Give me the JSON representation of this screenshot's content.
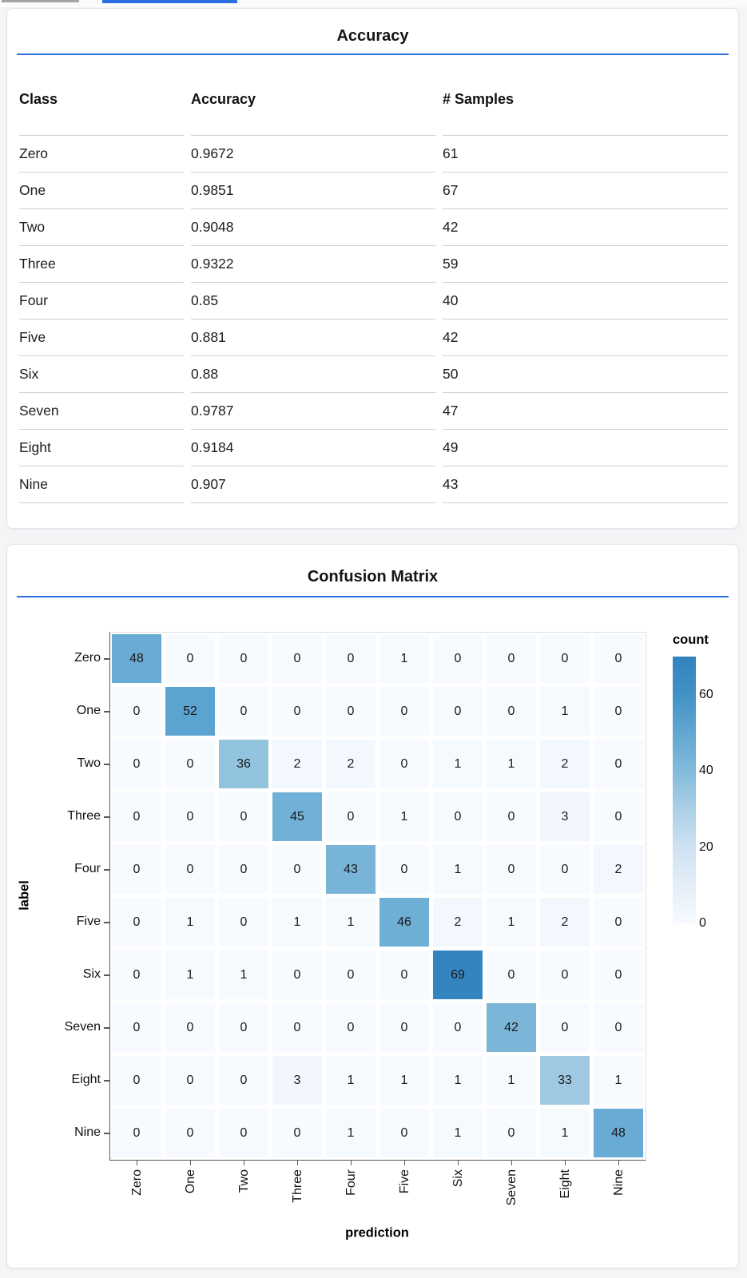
{
  "accent": "#2b6fe0",
  "top_bars": {
    "gray_color": "#a5a5a5",
    "blue_color": "#2b6fe0"
  },
  "accuracy_card": {
    "title": "Accuracy"
  },
  "confusion_card": {
    "title": "Confusion Matrix"
  },
  "chart_data": [
    {
      "type": "table",
      "title": "Accuracy",
      "columns": [
        "Class",
        "Accuracy",
        "# Samples"
      ],
      "rows": [
        [
          "Zero",
          "0.9672",
          "61"
        ],
        [
          "One",
          "0.9851",
          "67"
        ],
        [
          "Two",
          "0.9048",
          "42"
        ],
        [
          "Three",
          "0.9322",
          "59"
        ],
        [
          "Four",
          "0.85",
          "40"
        ],
        [
          "Five",
          "0.881",
          "42"
        ],
        [
          "Six",
          "0.88",
          "50"
        ],
        [
          "Seven",
          "0.9787",
          "47"
        ],
        [
          "Eight",
          "0.9184",
          "49"
        ],
        [
          "Nine",
          "0.907",
          "43"
        ]
      ]
    },
    {
      "type": "heatmap",
      "title": "Confusion Matrix",
      "xlabel": "prediction",
      "ylabel": "label",
      "legend_title": "count",
      "x_categories": [
        "Zero",
        "One",
        "Two",
        "Three",
        "Four",
        "Five",
        "Six",
        "Seven",
        "Eight",
        "Nine"
      ],
      "y_categories": [
        "Zero",
        "One",
        "Two",
        "Three",
        "Four",
        "Five",
        "Six",
        "Seven",
        "Eight",
        "Nine"
      ],
      "values": [
        [
          48,
          0,
          0,
          0,
          0,
          1,
          0,
          0,
          0,
          0
        ],
        [
          0,
          52,
          0,
          0,
          0,
          0,
          0,
          0,
          1,
          0
        ],
        [
          0,
          0,
          36,
          2,
          2,
          0,
          1,
          1,
          2,
          0
        ],
        [
          0,
          0,
          0,
          45,
          0,
          1,
          0,
          0,
          3,
          0
        ],
        [
          0,
          0,
          0,
          0,
          43,
          0,
          1,
          0,
          0,
          2
        ],
        [
          0,
          1,
          0,
          1,
          1,
          46,
          2,
          1,
          2,
          0
        ],
        [
          0,
          1,
          1,
          0,
          0,
          0,
          69,
          0,
          0,
          0
        ],
        [
          0,
          0,
          0,
          0,
          0,
          0,
          0,
          42,
          0,
          0
        ],
        [
          0,
          0,
          0,
          3,
          1,
          1,
          1,
          1,
          33,
          1
        ],
        [
          0,
          0,
          0,
          0,
          1,
          0,
          1,
          0,
          1,
          48
        ]
      ],
      "vmin": 0,
      "vmax": 70,
      "colorbar_ticks": [
        60,
        40,
        20,
        0
      ],
      "color_scheme": "blues",
      "color_stops": [
        "#f7fbff",
        "#e3eef8",
        "#cfe1f2",
        "#abd0e6",
        "#82badb",
        "#61a7d2",
        "#4292c6",
        "#3282be"
      ],
      "grid": false,
      "legend_position": "right"
    }
  ]
}
